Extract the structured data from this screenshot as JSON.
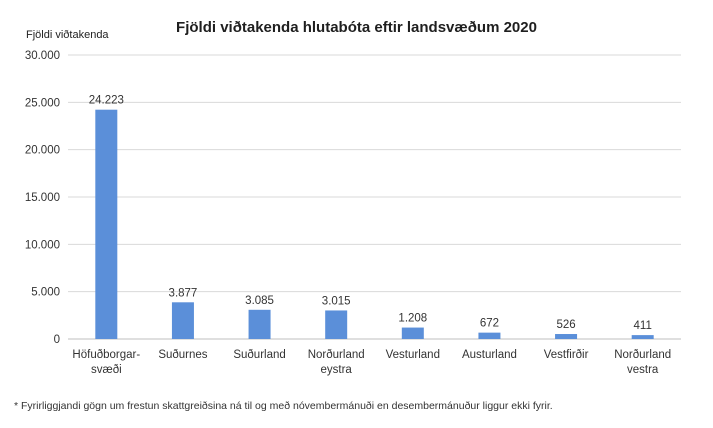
{
  "chart_data": {
    "type": "bar",
    "title": "Fjöldi viðtakenda hlutabóta eftir landsvæðum 2020",
    "ylabel": "Fjöldi viðtakenda",
    "xlabel": "",
    "ylim": [
      0,
      30000
    ],
    "yticks": [
      0,
      5000,
      10000,
      15000,
      20000,
      25000,
      30000
    ],
    "ytick_labels": [
      "0",
      "5.000",
      "10.000",
      "15.000",
      "20.000",
      "25.000",
      "30.000"
    ],
    "categories": [
      [
        "Höfuðborgar-",
        "svæði"
      ],
      [
        "Suðurnes"
      ],
      [
        "Suðurland"
      ],
      [
        "Norðurland",
        "eystra"
      ],
      [
        "Vesturland"
      ],
      [
        "Austurland"
      ],
      [
        "Vestfirðir"
      ],
      [
        "Norðurland",
        "vestra"
      ]
    ],
    "values": [
      24223,
      3877,
      3085,
      3015,
      1208,
      672,
      526,
      411
    ],
    "data_labels": [
      "24.223",
      "3.877",
      "3.085",
      "3.015",
      "1.208",
      "672",
      "526",
      "411"
    ],
    "grid": true,
    "legend": "none",
    "bar_color": "#5b8fd9"
  },
  "footnote": "* Fyrirliggjandi gögn um frestun skattgreiðsina ná til og með nóvembermánuði en desembermánuður liggur ekki fyrir."
}
